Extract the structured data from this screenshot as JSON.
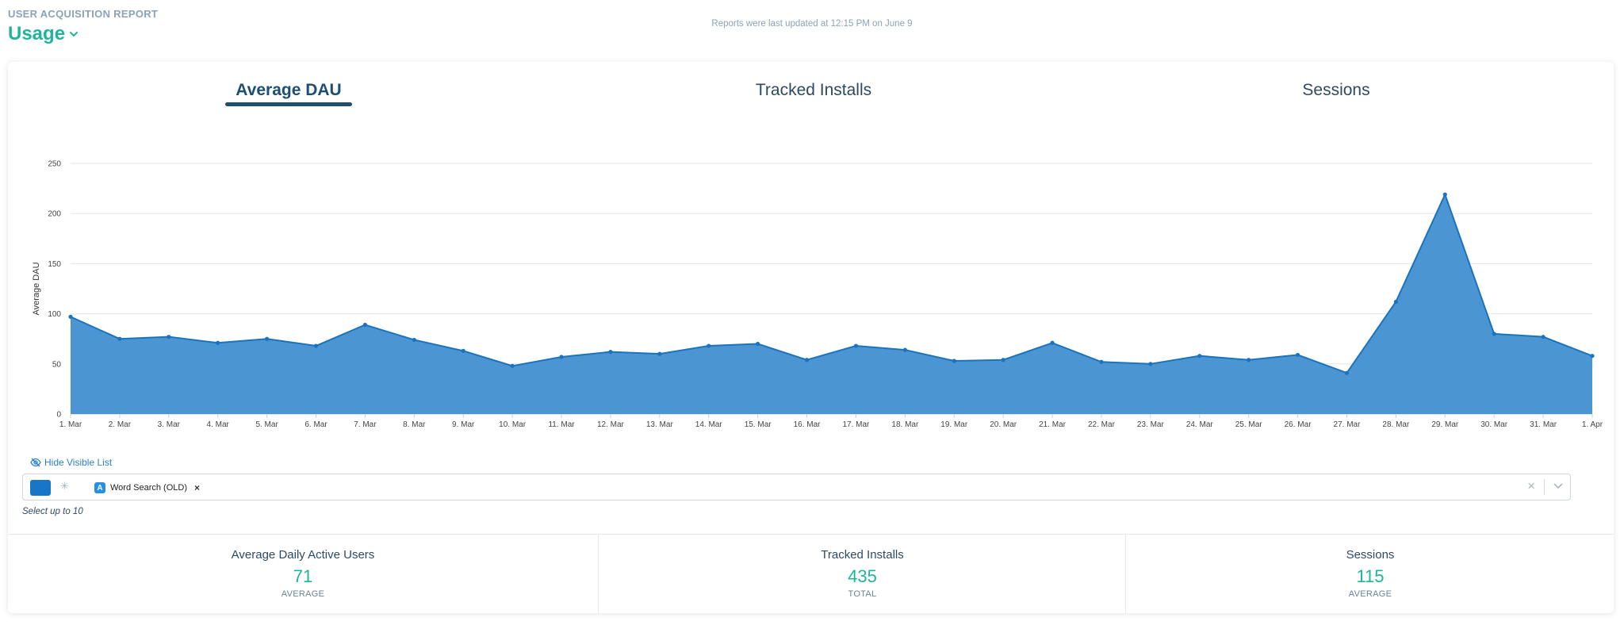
{
  "header": {
    "kicker": "USER ACQUISITION REPORT",
    "title": "Usage",
    "updated": "Reports were last updated at 12:15 PM on June 9"
  },
  "tabs": [
    {
      "label": "Average DAU",
      "active": true
    },
    {
      "label": "Tracked Installs",
      "active": false
    },
    {
      "label": "Sessions",
      "active": false
    }
  ],
  "chart_data": {
    "type": "area",
    "ylabel": "Average DAU",
    "ylim": [
      0,
      250
    ],
    "yticks": [
      0,
      50,
      100,
      150,
      200,
      250
    ],
    "grid": true,
    "color": "#4b96d2",
    "line_color": "#1b73bf",
    "categories": [
      "1. Mar",
      "2. Mar",
      "3. Mar",
      "4. Mar",
      "5. Mar",
      "6. Mar",
      "7. Mar",
      "8. Mar",
      "9. Mar",
      "10. Mar",
      "11. Mar",
      "12. Mar",
      "13. Mar",
      "14. Mar",
      "15. Mar",
      "16. Mar",
      "17. Mar",
      "18. Mar",
      "19. Mar",
      "20. Mar",
      "21. Mar",
      "22. Mar",
      "23. Mar",
      "24. Mar",
      "25. Mar",
      "26. Mar",
      "27. Mar",
      "28. Mar",
      "29. Mar",
      "30. Mar",
      "31. Mar",
      "1. Apr"
    ],
    "values": [
      97,
      75,
      77,
      71,
      75,
      68,
      89,
      74,
      63,
      48,
      57,
      62,
      60,
      68,
      70,
      54,
      68,
      64,
      53,
      54,
      71,
      52,
      50,
      58,
      54,
      59,
      41,
      112,
      219,
      80,
      77,
      58
    ]
  },
  "controls": {
    "hide_list": "Hide Visible List",
    "series_color": "#1976c6",
    "chip_label": "Word Search (OLD)",
    "hint": "Select up to 10"
  },
  "stats": [
    {
      "label": "Average Daily Active Users",
      "value": "71",
      "sub": "AVERAGE"
    },
    {
      "label": "Tracked Installs",
      "value": "435",
      "sub": "TOTAL"
    },
    {
      "label": "Sessions",
      "value": "115",
      "sub": "AVERAGE"
    }
  ]
}
